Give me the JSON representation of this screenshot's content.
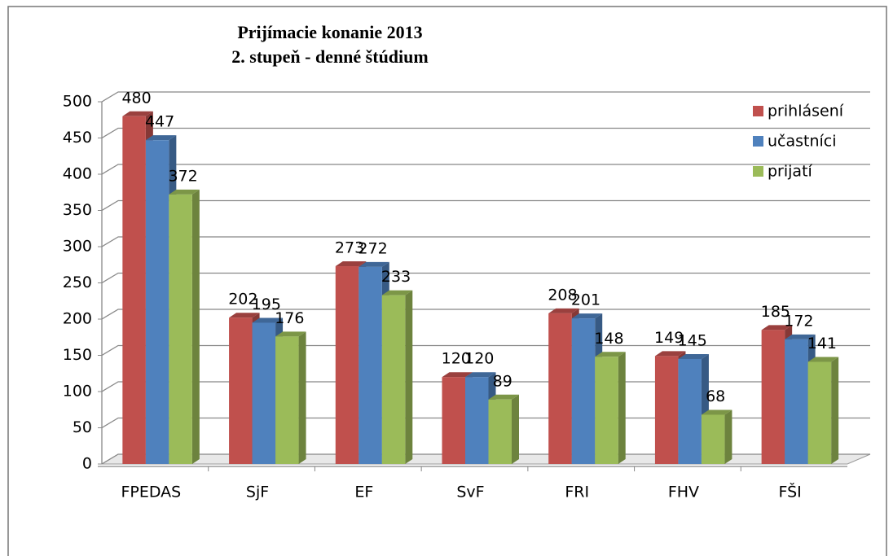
{
  "chart_data": {
    "type": "bar3d",
    "title": "Prijímacie konanie 2013",
    "subtitle": "2. stupeň - denné štúdium",
    "categories": [
      "FPEDAS",
      "SjF",
      "EF",
      "SvF",
      "FRI",
      "FHV",
      "FŠI"
    ],
    "series": [
      {
        "name": "prihlásení",
        "color": "#c0504d",
        "values": [
          480,
          202,
          273,
          120,
          208,
          149,
          185
        ]
      },
      {
        "name": "učastníci",
        "color": "#4f81bd",
        "values": [
          447,
          195,
          272,
          120,
          201,
          145,
          172
        ]
      },
      {
        "name": "prijatí",
        "color": "#9bbb59",
        "values": [
          372,
          176,
          233,
          89,
          148,
          68,
          141
        ]
      }
    ],
    "ylim": [
      0,
      500
    ],
    "yticks": [
      0,
      50,
      100,
      150,
      200,
      250,
      300,
      350,
      400,
      450,
      500
    ],
    "grid": true,
    "legend": "right",
    "data_labels": true
  }
}
